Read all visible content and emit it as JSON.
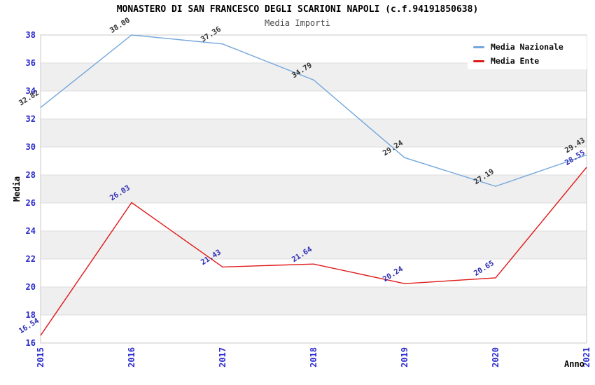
{
  "header": {
    "title": "MONASTERO DI SAN FRANCESCO DEGLI SCARIONI NAPOLI (c.f.94191850638)",
    "subtitle": "Media Importi"
  },
  "chart_data": {
    "type": "line",
    "title": "MONASTERO DI SAN FRANCESCO DEGLI SCARIONI NAPOLI (c.f.94191850638)",
    "subtitle": "Media Importi",
    "xlabel": "Anno",
    "ylabel": "Media",
    "x": [
      "2015",
      "2016",
      "2017",
      "2018",
      "2019",
      "2020",
      "2021"
    ],
    "ylim": [
      16,
      38
    ],
    "ytick_step": 2,
    "grid": "horizontal-alternating-bands",
    "legend_position": "top-right",
    "series": [
      {
        "name": "Media Nazionale",
        "color": "#74a7dc",
        "label_color": "#333333",
        "values": [
          32.82,
          38.0,
          37.36,
          34.79,
          29.24,
          27.19,
          29.43
        ]
      },
      {
        "name": "Media Ente",
        "color": "#e01818",
        "label_color": "#2d2db4",
        "values": [
          16.54,
          26.03,
          21.43,
          21.64,
          20.24,
          20.65,
          28.55
        ]
      }
    ],
    "colors": {
      "tick_label": "#2a2acc",
      "band": "#efefef",
      "background": "#ffffff",
      "gridline": "#dcdcdc",
      "plot_border": "#c8c8c8",
      "title": "#000000",
      "subtitle": "#4d4d4d"
    }
  }
}
